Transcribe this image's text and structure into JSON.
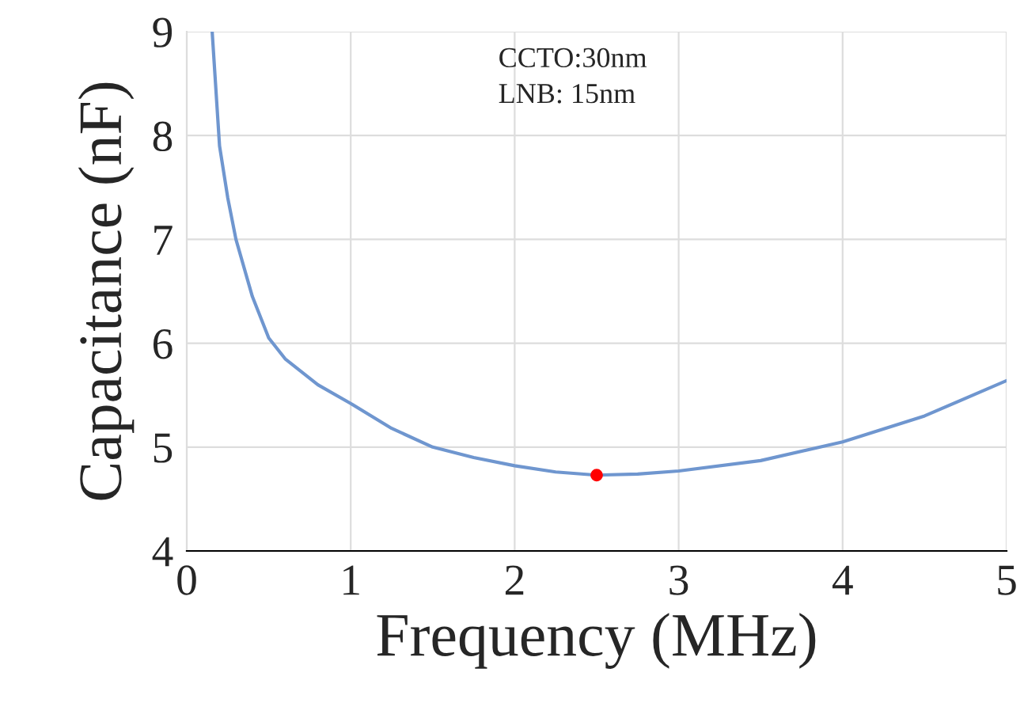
{
  "chart_data": {
    "type": "line",
    "xlabel": "Frequency (MHz)",
    "ylabel": "Capacitance (nF)",
    "annotations": [
      "CCTO:30nm\nLNB: 15nm"
    ],
    "series": [
      {
        "color": "#6f96cf",
        "x": [
          0.155,
          0.2,
          0.25,
          0.3,
          0.4,
          0.5,
          0.6,
          0.8,
          1.0,
          1.25,
          1.5,
          1.75,
          2.0,
          2.25,
          2.5,
          2.75,
          3.0,
          3.5,
          4.0,
          4.5,
          5.0
        ],
        "values": [
          9.0,
          7.9,
          7.4,
          7.0,
          6.45,
          6.05,
          5.85,
          5.6,
          5.42,
          5.18,
          5.0,
          4.9,
          4.82,
          4.76,
          4.73,
          4.74,
          4.77,
          4.87,
          5.05,
          5.3,
          5.64
        ]
      },
      {
        "type": "scatter",
        "marker": "circle",
        "color": "#ff0000",
        "x": [
          2.5
        ],
        "values": [
          4.73
        ]
      }
    ],
    "xlim": [
      0,
      5
    ],
    "xticks": [
      0,
      1,
      2,
      3,
      4,
      5
    ],
    "ylim": [
      4,
      9
    ],
    "yticks": [
      4,
      5,
      6,
      7,
      8,
      9
    ],
    "grid": true,
    "line_style": "solid"
  }
}
